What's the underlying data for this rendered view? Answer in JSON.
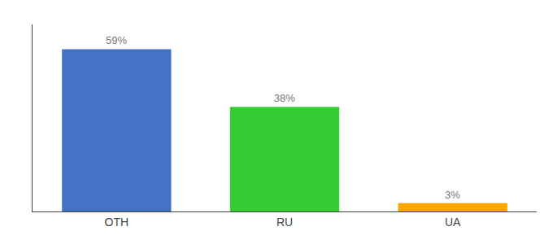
{
  "chart_data": {
    "type": "bar",
    "categories": [
      "OTH",
      "RU",
      "UA"
    ],
    "values": [
      59,
      38,
      3
    ],
    "value_labels": [
      "59%",
      "38%",
      "3%"
    ],
    "colors": [
      "#4472C4",
      "#33CC33",
      "#FFA500"
    ],
    "data_labels": true,
    "ylim": [
      0,
      68
    ],
    "tick_labels": "x",
    "grid": false
  }
}
